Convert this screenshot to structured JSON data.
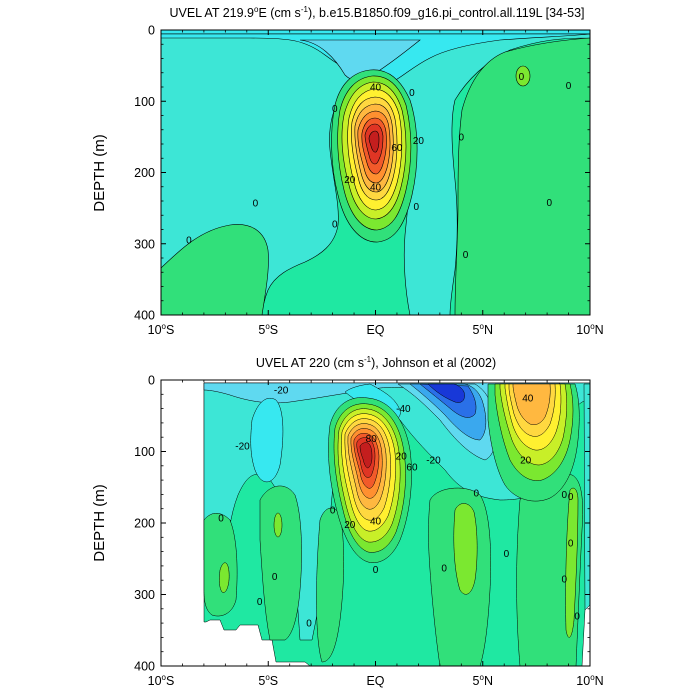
{
  "chart_data": [
    {
      "type": "contour",
      "title_main": "UVEL AT 219.9",
      "title_deg": "o",
      "title_e": "E (cm s",
      "title_sup": "-1",
      "title_rest": "), b.e15.B1850.f09_g16.pi_control.all.119L [34-53]",
      "ylabel": "DEPTH (m)",
      "xlim": [
        -10,
        10
      ],
      "ylim": [
        0,
        400
      ],
      "y_reversed": true,
      "x_ticks": [
        {
          "value": -10,
          "num": "10",
          "deg": "o",
          "hem": "S"
        },
        {
          "value": -5,
          "num": "5",
          "deg": "o",
          "hem": "S"
        },
        {
          "value": 0,
          "num": "EQ",
          "deg": "",
          "hem": ""
        },
        {
          "value": 5,
          "num": "5",
          "deg": "o",
          "hem": "N"
        },
        {
          "value": 10,
          "num": "10",
          "deg": "o",
          "hem": "N"
        }
      ],
      "y_ticks": [
        0,
        100,
        200,
        300,
        400
      ],
      "contour_interval": 10,
      "contour_labels": [
        {
          "x": 0,
          "depth": 80,
          "text": "40"
        },
        {
          "x": 2,
          "depth": 155,
          "text": "20"
        },
        {
          "x": 1,
          "depth": 165,
          "text": "60"
        },
        {
          "x": -1.2,
          "depth": 210,
          "text": "20"
        },
        {
          "x": 0,
          "depth": 220,
          "text": "40"
        },
        {
          "x": -1.9,
          "depth": 110,
          "text": "0"
        },
        {
          "x": 1.7,
          "depth": 88,
          "text": "0"
        },
        {
          "x": -5.6,
          "depth": 243,
          "text": "0"
        },
        {
          "x": -1.9,
          "depth": 272,
          "text": "0"
        },
        {
          "x": 1.9,
          "depth": 248,
          "text": "0"
        },
        {
          "x": -8.7,
          "depth": 295,
          "text": "0"
        },
        {
          "x": 4.0,
          "depth": 150,
          "text": "0"
        },
        {
          "x": 4.2,
          "depth": 315,
          "text": "0"
        },
        {
          "x": 6.8,
          "depth": 65,
          "text": "0"
        },
        {
          "x": 9.0,
          "depth": 78,
          "text": "0"
        },
        {
          "x": 8.1,
          "depth": 242,
          "text": "0"
        }
      ]
    },
    {
      "type": "contour",
      "title_main": "UVEL AT 220 (cm s",
      "title_sup": "-1",
      "title_rest": "), Johnson et al (2002)",
      "ylabel": "DEPTH (m)",
      "xlim": [
        -10,
        10
      ],
      "ylim": [
        0,
        400
      ],
      "y_reversed": true,
      "x_ticks": [
        {
          "value": -10,
          "num": "10",
          "deg": "o",
          "hem": "S"
        },
        {
          "value": -5,
          "num": "5",
          "deg": "o",
          "hem": "S"
        },
        {
          "value": 0,
          "num": "EQ",
          "deg": "",
          "hem": ""
        },
        {
          "value": 5,
          "num": "5",
          "deg": "o",
          "hem": "N"
        },
        {
          "value": 10,
          "num": "10",
          "deg": "o",
          "hem": "N"
        }
      ],
      "y_ticks": [
        0,
        100,
        200,
        300,
        400
      ],
      "contour_interval": 10,
      "contour_labels": [
        {
          "x": -4.4,
          "depth": 14,
          "text": "-20"
        },
        {
          "x": 1.3,
          "depth": 40,
          "text": "-40"
        },
        {
          "x": -6.2,
          "depth": 92,
          "text": "-20"
        },
        {
          "x": 2.7,
          "depth": 112,
          "text": "-20"
        },
        {
          "x": 7.1,
          "depth": 25,
          "text": "40"
        },
        {
          "x": 7.0,
          "depth": 112,
          "text": "20"
        },
        {
          "x": -0.2,
          "depth": 82,
          "text": "80"
        },
        {
          "x": 1.2,
          "depth": 106,
          "text": "20"
        },
        {
          "x": 1.7,
          "depth": 122,
          "text": "60"
        },
        {
          "x": -1.2,
          "depth": 202,
          "text": "20"
        },
        {
          "x": 0,
          "depth": 197,
          "text": "40"
        },
        {
          "x": -7.2,
          "depth": 193,
          "text": "0"
        },
        {
          "x": -2.0,
          "depth": 182,
          "text": "0"
        },
        {
          "x": -4.7,
          "depth": 275,
          "text": "0"
        },
        {
          "x": 0,
          "depth": 265,
          "text": "0"
        },
        {
          "x": -5.4,
          "depth": 310,
          "text": "0"
        },
        {
          "x": -3.1,
          "depth": 340,
          "text": "0"
        },
        {
          "x": 4.7,
          "depth": 158,
          "text": "0"
        },
        {
          "x": 6.1,
          "depth": 243,
          "text": "0"
        },
        {
          "x": 3.2,
          "depth": 263,
          "text": "0"
        },
        {
          "x": 8.8,
          "depth": 160,
          "text": "0"
        },
        {
          "x": 9.1,
          "depth": 163,
          "text": "0"
        },
        {
          "x": 9.1,
          "depth": 228,
          "text": "0"
        },
        {
          "x": 8.8,
          "depth": 278,
          "text": "0"
        },
        {
          "x": 9.4,
          "depth": 330,
          "text": "0"
        }
      ]
    }
  ]
}
